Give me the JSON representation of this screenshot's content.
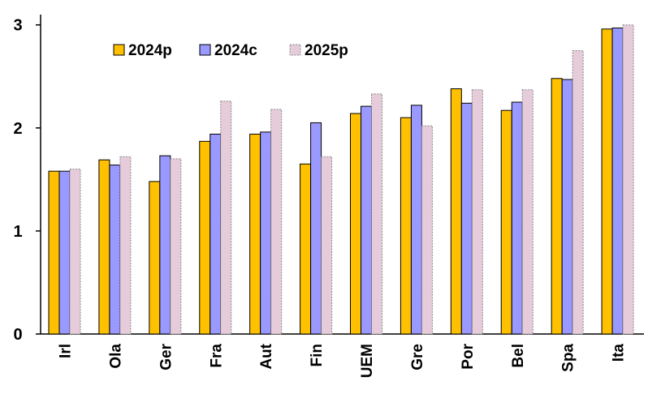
{
  "chart_data": {
    "type": "bar",
    "categories": [
      "Irl",
      "Ola",
      "Ger",
      "Fra",
      "Aut",
      "Fin",
      "UEM",
      "Gre",
      "Por",
      "Bel",
      "Spa",
      "Ita"
    ],
    "series": [
      {
        "name": "2024p",
        "color": "#FFC000",
        "values": [
          1.58,
          1.69,
          1.48,
          1.87,
          1.94,
          1.65,
          2.14,
          2.1,
          2.38,
          2.17,
          2.48,
          2.96
        ]
      },
      {
        "name": "2024c",
        "color": "#9999FF",
        "values": [
          1.58,
          1.64,
          1.73,
          1.94,
          1.96,
          2.05,
          2.21,
          2.22,
          2.24,
          2.25,
          2.47,
          2.97
        ]
      },
      {
        "name": "2025p",
        "color": "#E6CCDA",
        "values": [
          1.6,
          1.72,
          1.7,
          2.26,
          2.18,
          1.72,
          2.33,
          2.02,
          2.37,
          2.37,
          2.75,
          3.0
        ]
      }
    ],
    "yticks": [
      "0",
      "1",
      "2",
      "3"
    ],
    "ylim": [
      0,
      3.1
    ],
    "grid": false,
    "legend_position": "top-left",
    "title": "",
    "xlabel": "",
    "ylabel": ""
  }
}
